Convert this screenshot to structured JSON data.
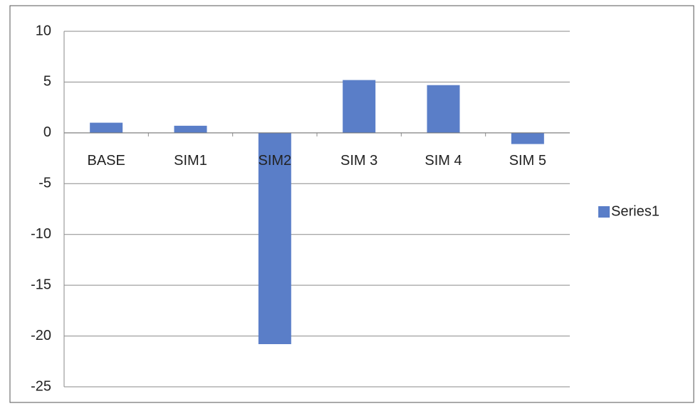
{
  "chart_data": {
    "type": "bar",
    "categories": [
      "BASE",
      "SIM1",
      "SIM2",
      "SIM 3",
      "SIM 4",
      "SIM 5"
    ],
    "series": [
      {
        "name": "Series1",
        "color": "#5a7ec8",
        "values": [
          1.0,
          0.7,
          -20.8,
          5.2,
          4.7,
          -1.1
        ]
      }
    ],
    "ylim": [
      -25,
      10
    ],
    "yticks": [
      10,
      5,
      0,
      -5,
      -10,
      -15,
      -20,
      -25
    ],
    "grid": true,
    "legend": "right"
  }
}
